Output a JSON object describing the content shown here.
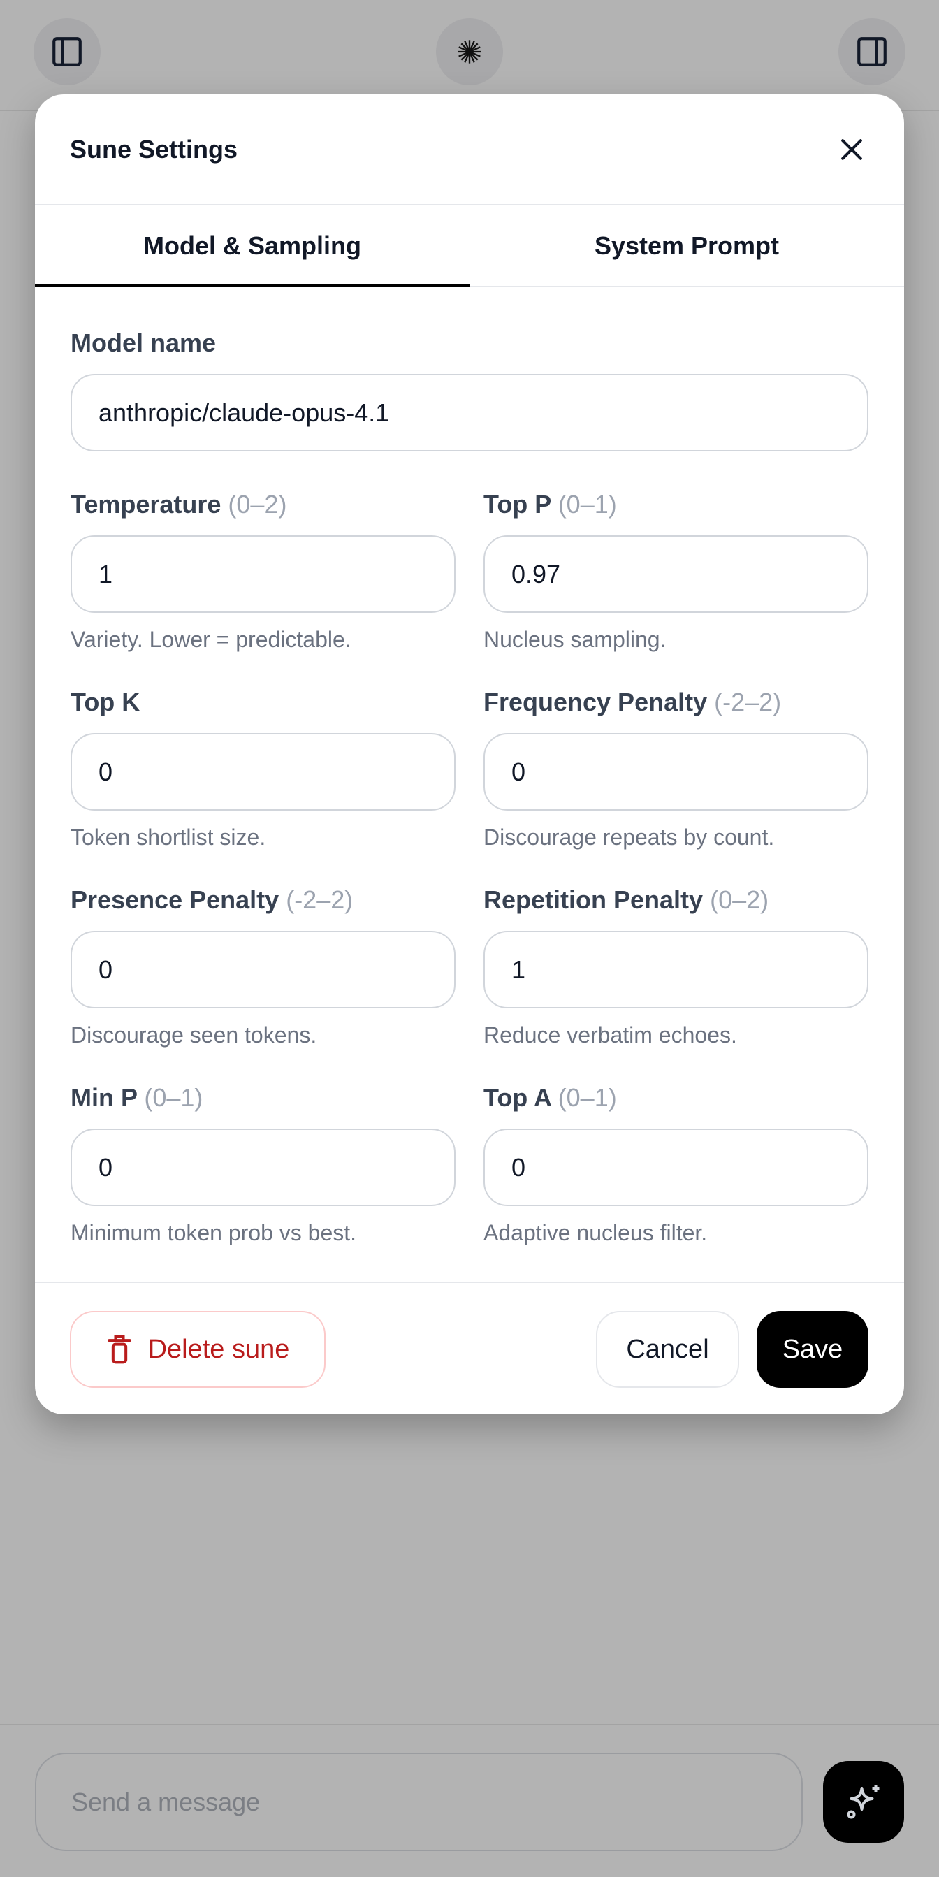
{
  "topbar": {
    "left_icon": "sidebar-left-icon",
    "center_icon": "starburst-logo-icon",
    "right_icon": "sidebar-right-icon"
  },
  "modal": {
    "title": "Sune Settings",
    "close_icon": "close-icon",
    "tabs": [
      {
        "label": "Model & Sampling",
        "active": true
      },
      {
        "label": "System Prompt",
        "active": false
      }
    ],
    "model": {
      "label": "Model name",
      "value": "anthropic/claude-opus-4.1"
    },
    "fields": [
      {
        "label": "Temperature",
        "range": "(0–2)",
        "value": "1",
        "help": "Variety. Lower = predictable."
      },
      {
        "label": "Top P",
        "range": "(0–1)",
        "value": "0.97",
        "help": "Nucleus sampling."
      },
      {
        "label": "Top K",
        "range": "",
        "value": "0",
        "help": "Token shortlist size."
      },
      {
        "label": "Frequency Penalty",
        "range": "(-2–2)",
        "value": "0",
        "help": "Discourage repeats by count."
      },
      {
        "label": "Presence Penalty",
        "range": "(-2–2)",
        "value": "0",
        "help": "Discourage seen tokens."
      },
      {
        "label": "Repetition Penalty",
        "range": "(0–2)",
        "value": "1",
        "help": "Reduce verbatim echoes."
      },
      {
        "label": "Min P",
        "range": "(0–1)",
        "value": "0",
        "help": "Minimum token prob vs best."
      },
      {
        "label": "Top A",
        "range": "(0–1)",
        "value": "0",
        "help": "Adaptive nucleus filter."
      }
    ],
    "footer": {
      "delete_label": "Delete sune",
      "cancel_label": "Cancel",
      "save_label": "Save"
    }
  },
  "composer": {
    "placeholder": "Send a message",
    "send_icon": "sparkles-icon"
  },
  "colors": {
    "danger": "#b91c1c",
    "primary": "#000000",
    "overlay": "#b3b3b3"
  }
}
